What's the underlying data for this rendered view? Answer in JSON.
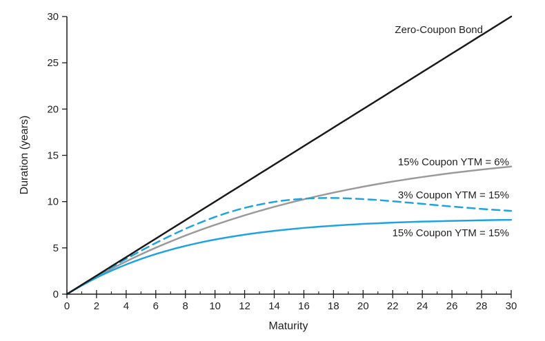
{
  "chart_data": {
    "type": "line",
    "title": "",
    "xlabel": "Maturity",
    "ylabel": "Duration (years)",
    "xlim": [
      0,
      30
    ],
    "ylim": [
      0,
      30
    ],
    "x_ticks": [
      0,
      2,
      4,
      6,
      8,
      10,
      12,
      14,
      16,
      18,
      20,
      22,
      24,
      26,
      28,
      30
    ],
    "y_ticks": [
      0,
      5,
      10,
      15,
      20,
      25,
      30
    ],
    "grid": false,
    "x": [
      0,
      1,
      2,
      3,
      4,
      5,
      6,
      7,
      8,
      9,
      10,
      11,
      12,
      13,
      14,
      15,
      16,
      17,
      18,
      19,
      20,
      21,
      22,
      23,
      24,
      25,
      26,
      27,
      28,
      29,
      30
    ],
    "series": [
      {
        "name": "Zero-Coupon Bond",
        "color": "#1a1a1a",
        "style": "solid",
        "values": [
          0,
          1,
          2,
          3,
          4,
          5,
          6,
          7,
          8,
          9,
          10,
          11,
          12,
          13,
          14,
          15,
          16,
          17,
          18,
          19,
          20,
          21,
          22,
          23,
          24,
          25,
          26,
          27,
          28,
          29,
          30
        ]
      },
      {
        "name": "15% Coupon YTM = 6%",
        "color": "#9a9a9a",
        "style": "solid",
        "values": [
          0,
          0.97,
          1.88,
          2.73,
          3.54,
          4.3,
          5.02,
          5.69,
          6.33,
          6.93,
          7.49,
          8.02,
          8.52,
          8.99,
          9.44,
          9.86,
          10.25,
          10.62,
          10.97,
          11.3,
          11.61,
          11.9,
          12.17,
          12.42,
          12.66,
          12.88,
          13.09,
          13.28,
          13.46,
          13.63,
          13.79
        ]
      },
      {
        "name": "3% Coupon YTM = 15%",
        "color": "#1fa3e0",
        "style": "dashed",
        "values": [
          0,
          0.99,
          1.96,
          2.9,
          3.81,
          4.69,
          5.53,
          6.32,
          7.06,
          7.73,
          8.34,
          8.87,
          9.32,
          9.68,
          9.97,
          10.18,
          10.31,
          10.38,
          10.39,
          10.35,
          10.27,
          10.17,
          10.04,
          9.9,
          9.76,
          9.61,
          9.47,
          9.34,
          9.21,
          9.1,
          9.0
        ]
      },
      {
        "name": "15% Coupon YTM = 15%",
        "color": "#1fa3e0",
        "style": "solid",
        "values": [
          0,
          0.93,
          1.78,
          2.53,
          3.2,
          3.8,
          4.33,
          4.8,
          5.21,
          5.58,
          5.9,
          6.18,
          6.43,
          6.65,
          6.84,
          7.01,
          7.16,
          7.29,
          7.4,
          7.5,
          7.59,
          7.66,
          7.73,
          7.79,
          7.84,
          7.88,
          7.92,
          7.95,
          7.98,
          8.01,
          8.03
        ]
      }
    ]
  }
}
